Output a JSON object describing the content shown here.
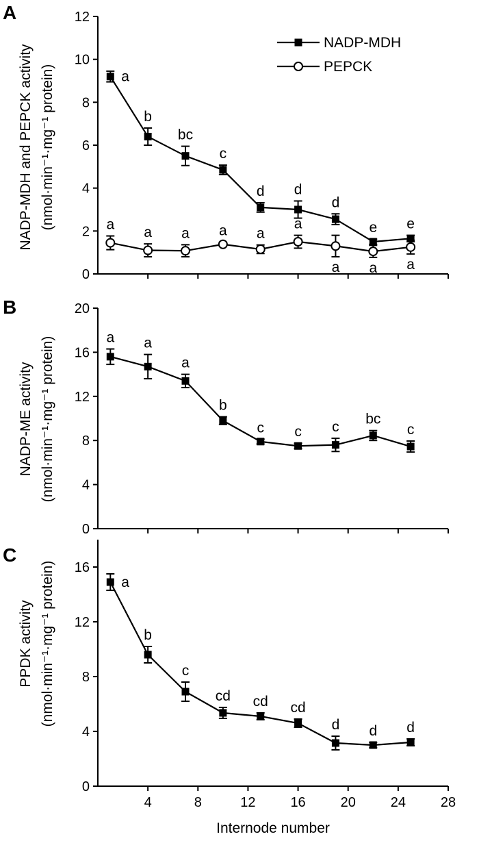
{
  "chart_data": [
    {
      "type": "line",
      "panel": "A",
      "ylabel_line1": "NADP-MDH and PEPCK activity",
      "ylabel_line2": "(nmol·min⁻¹·mg⁻¹ protein)",
      "ylim": [
        0,
        12
      ],
      "yticks": [
        0,
        2,
        4,
        6,
        8,
        10,
        12
      ],
      "xlim": [
        0,
        28
      ],
      "x": [
        1,
        4,
        7,
        10,
        13,
        16,
        19,
        22,
        25
      ],
      "legend_position": "top-right",
      "series": [
        {
          "name": "NADP-MDH",
          "marker": "square-filled",
          "values": [
            9.2,
            6.4,
            5.5,
            4.85,
            3.1,
            3.0,
            2.55,
            1.5,
            1.65
          ],
          "errors": [
            0.25,
            0.4,
            0.45,
            0.22,
            0.22,
            0.4,
            0.25,
            0.12,
            0.15
          ],
          "labels": [
            "a",
            "b",
            "bc",
            "c",
            "d",
            "d",
            "d",
            "e",
            "e"
          ],
          "label_side": "top"
        },
        {
          "name": "PEPCK",
          "marker": "circle-open",
          "values": [
            1.45,
            1.1,
            1.08,
            1.38,
            1.15,
            1.5,
            1.3,
            1.05,
            1.25
          ],
          "errors": [
            0.32,
            0.3,
            0.28,
            0.1,
            0.2,
            0.3,
            0.5,
            0.28,
            0.32
          ],
          "labels": [
            "a",
            "a",
            "a",
            "a",
            "a",
            "a",
            "a",
            "a",
            "a"
          ],
          "label_side": "mixed"
        }
      ]
    },
    {
      "type": "line",
      "panel": "B",
      "ylabel_line1": "NADP-ME activity",
      "ylabel_line2": "(nmol·min⁻¹·mg⁻¹ protein)",
      "ylim": [
        0,
        20
      ],
      "yticks": [
        0,
        4,
        8,
        12,
        16,
        20
      ],
      "xlim": [
        0,
        28
      ],
      "x": [
        1,
        4,
        7,
        10,
        13,
        16,
        19,
        22,
        25
      ],
      "series": [
        {
          "name": "NADP-ME",
          "marker": "square-filled",
          "values": [
            15.6,
            14.7,
            13.4,
            9.8,
            7.9,
            7.5,
            7.6,
            8.45,
            7.45
          ],
          "errors": [
            0.7,
            1.1,
            0.6,
            0.35,
            0.22,
            0.25,
            0.6,
            0.45,
            0.5
          ],
          "labels": [
            "a",
            "a",
            "a",
            "b",
            "c",
            "c",
            "c",
            "bc",
            "c"
          ],
          "label_side": "top"
        }
      ]
    },
    {
      "type": "line",
      "panel": "C",
      "ylabel_line1": "PPDK activity",
      "ylabel_line2": "(nmol·min⁻¹·mg⁻¹ protein)",
      "xlabel": "Internode number",
      "ylim": [
        0,
        18
      ],
      "yticks": [
        0,
        4,
        8,
        12,
        16
      ],
      "xlim": [
        0,
        28
      ],
      "xticks": [
        4,
        8,
        12,
        16,
        20,
        24,
        28
      ],
      "x": [
        1,
        4,
        7,
        10,
        13,
        16,
        19,
        22,
        25
      ],
      "series": [
        {
          "name": "PPDK",
          "marker": "square-filled",
          "values": [
            14.9,
            9.6,
            6.9,
            5.35,
            5.1,
            4.6,
            3.15,
            3.0,
            3.2
          ],
          "errors": [
            0.6,
            0.6,
            0.7,
            0.4,
            0.25,
            0.3,
            0.5,
            0.2,
            0.25
          ],
          "labels": [
            "a",
            "b",
            "c",
            "cd",
            "cd",
            "cd",
            "d",
            "d",
            "d"
          ],
          "label_side": "top"
        }
      ]
    }
  ]
}
